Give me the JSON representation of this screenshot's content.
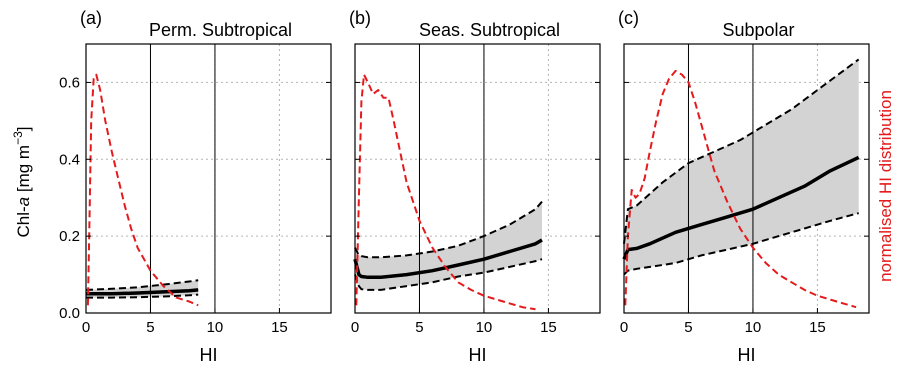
{
  "figure": {
    "ylabel_prefix": "Chl-",
    "ylabel_var": "a",
    "ylabel_unit_open": " [mg m",
    "ylabel_unit_exp": "−3",
    "ylabel_unit_close": "]",
    "right_ylabel": "normalised HI distribution",
    "colors": {
      "mean": "#000000",
      "band": "#d3d3d3",
      "distribution": "#e41a1c",
      "grid": "#b3b3b3"
    }
  },
  "chart_data": [
    {
      "type": "line",
      "label": "(a)",
      "title": "Perm. Subtropical",
      "xlabel": "HI",
      "xlim": [
        0,
        19
      ],
      "ylim": [
        0,
        0.7
      ],
      "xticks": [
        0,
        5,
        10,
        15
      ],
      "yticks": [
        0.0,
        0.2,
        0.4,
        0.6
      ],
      "grid": true,
      "mean": {
        "x": [
          0,
          2,
          4,
          6,
          8,
          8.7
        ],
        "y": [
          0.05,
          0.05,
          0.052,
          0.055,
          0.058,
          0.06
        ]
      },
      "upper": {
        "x": [
          0,
          2,
          4,
          6,
          8,
          8.7
        ],
        "y": [
          0.06,
          0.063,
          0.067,
          0.074,
          0.082,
          0.085
        ]
      },
      "lower": {
        "x": [
          0,
          2,
          4,
          6,
          8,
          8.7
        ],
        "y": [
          0.04,
          0.04,
          0.041,
          0.043,
          0.046,
          0.048
        ]
      },
      "distribution": {
        "x": [
          0.15,
          0.25,
          0.4,
          0.6,
          0.8,
          1.1,
          1.5,
          2.0,
          2.5,
          3.0,
          3.5,
          4.0,
          5.0,
          6.0,
          7.0,
          8.0,
          8.7
        ],
        "y": [
          0.02,
          0.2,
          0.5,
          0.61,
          0.62,
          0.58,
          0.5,
          0.42,
          0.35,
          0.28,
          0.22,
          0.17,
          0.11,
          0.07,
          0.04,
          0.03,
          0.02
        ]
      }
    },
    {
      "type": "line",
      "label": "(b)",
      "title": "Seas. Subtropical",
      "xlabel": "HI",
      "xlim": [
        0,
        19
      ],
      "ylim": [
        0,
        0.7
      ],
      "xticks": [
        0,
        5,
        10,
        15
      ],
      "yticks": [
        0.0,
        0.2,
        0.4,
        0.6
      ],
      "grid": true,
      "mean": {
        "x": [
          0,
          0.3,
          0.5,
          1,
          2,
          4,
          6,
          8,
          10,
          12,
          14,
          14.5
        ],
        "y": [
          0.14,
          0.1,
          0.095,
          0.093,
          0.093,
          0.1,
          0.11,
          0.125,
          0.14,
          0.16,
          0.18,
          0.19
        ]
      },
      "upper": {
        "x": [
          0,
          0.3,
          0.5,
          1,
          2,
          4,
          6,
          8,
          10,
          12,
          14,
          14.5
        ],
        "y": [
          0.17,
          0.15,
          0.148,
          0.145,
          0.145,
          0.15,
          0.16,
          0.175,
          0.2,
          0.23,
          0.27,
          0.29
        ]
      },
      "lower": {
        "x": [
          0,
          0.3,
          0.5,
          1,
          2,
          4,
          6,
          8,
          10,
          12,
          14,
          14.5
        ],
        "y": [
          0.1,
          0.07,
          0.062,
          0.06,
          0.06,
          0.07,
          0.08,
          0.095,
          0.105,
          0.12,
          0.135,
          0.14
        ]
      },
      "distribution": {
        "x": [
          0.1,
          0.3,
          0.5,
          0.7,
          1.0,
          1.4,
          1.8,
          2.2,
          2.6,
          3.0,
          3.5,
          4.0,
          5.0,
          6.0,
          7.0,
          8.0,
          9.0,
          10.0,
          11.0,
          12.0,
          13.0,
          14.0
        ],
        "y": [
          0.02,
          0.3,
          0.55,
          0.62,
          0.6,
          0.57,
          0.58,
          0.56,
          0.56,
          0.5,
          0.42,
          0.34,
          0.24,
          0.17,
          0.12,
          0.08,
          0.06,
          0.045,
          0.035,
          0.025,
          0.015,
          0.01
        ]
      }
    },
    {
      "type": "line",
      "label": "(c)",
      "title": "Subpolar",
      "xlabel": "HI",
      "xlim": [
        0,
        19
      ],
      "ylim": [
        0,
        0.7
      ],
      "xticks": [
        0,
        5,
        10,
        15
      ],
      "yticks": [
        0.0,
        0.2,
        0.4,
        0.6
      ],
      "grid": true,
      "mean": {
        "x": [
          0,
          0.3,
          1,
          2,
          4,
          6,
          8,
          10,
          12,
          14,
          16,
          18.2
        ],
        "y": [
          0.14,
          0.165,
          0.168,
          0.18,
          0.21,
          0.23,
          0.25,
          0.27,
          0.3,
          0.33,
          0.37,
          0.405
        ]
      },
      "upper": {
        "x": [
          0,
          0.3,
          1,
          2,
          3,
          5,
          7,
          9,
          11,
          13,
          15,
          17,
          18.2
        ],
        "y": [
          0.18,
          0.27,
          0.28,
          0.31,
          0.34,
          0.39,
          0.42,
          0.45,
          0.49,
          0.53,
          0.58,
          0.63,
          0.66
        ]
      },
      "lower": {
        "x": [
          0,
          0.3,
          1,
          2,
          4,
          6,
          8,
          10,
          12,
          14,
          16,
          18.2
        ],
        "y": [
          0.1,
          0.11,
          0.115,
          0.12,
          0.13,
          0.15,
          0.165,
          0.18,
          0.2,
          0.22,
          0.24,
          0.26
        ]
      },
      "distribution": {
        "x": [
          0.1,
          0.3,
          0.6,
          0.9,
          1.2,
          1.6,
          2.0,
          2.5,
          3.0,
          3.5,
          4.0,
          4.5,
          5.0,
          5.5,
          6.0,
          6.5,
          7.0,
          8.0,
          9.0,
          10.0,
          11.0,
          12.0,
          13.0,
          14.0,
          15.0,
          16.0,
          17.0,
          18.0
        ],
        "y": [
          0.02,
          0.2,
          0.32,
          0.3,
          0.31,
          0.35,
          0.42,
          0.5,
          0.57,
          0.61,
          0.63,
          0.62,
          0.6,
          0.55,
          0.49,
          0.43,
          0.37,
          0.29,
          0.22,
          0.17,
          0.13,
          0.1,
          0.08,
          0.06,
          0.045,
          0.035,
          0.025,
          0.015
        ]
      }
    }
  ]
}
